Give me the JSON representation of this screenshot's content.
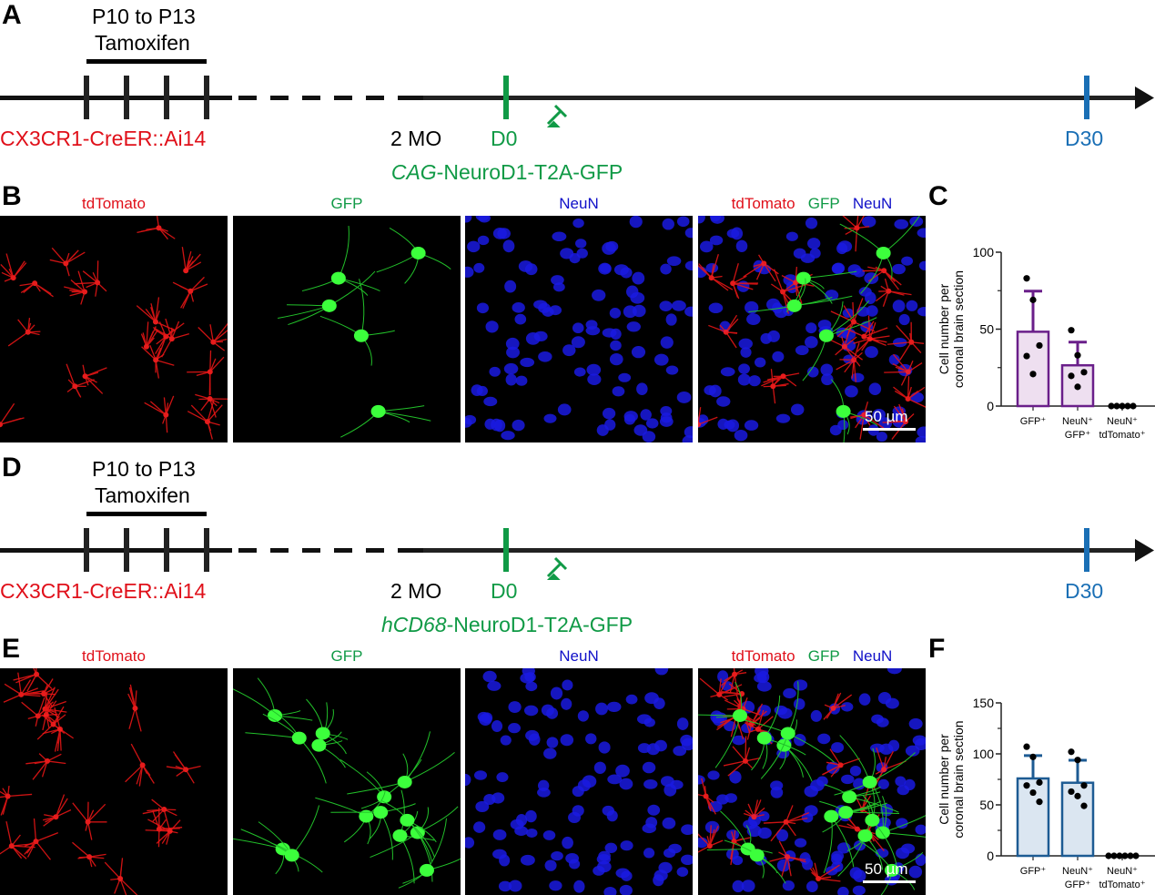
{
  "colors": {
    "red": "#e0101a",
    "green": "#109a46",
    "blue": "#1a6fb5",
    "navy": "#1010c8",
    "purple": "#6a1f8a",
    "purple_fill": "#eedff0",
    "steel": "#1d5b93",
    "steel_fill": "#dbe6f1"
  },
  "panels": [
    {
      "letter_timeline": "A",
      "letter_images": "B",
      "letter_chart": "C",
      "timeline": {
        "period": "P10 to P13",
        "drug": "Tamoxifen",
        "mouse": "CX3CR1-CreER::Ai14",
        "age": "2 MO",
        "day0": "D0",
        "day30": "D30",
        "virus_italic": "CAG",
        "virus_rest": "-NeuroD1-T2A-GFP",
        "icon": "syringe-icon"
      },
      "images": {
        "channels": [
          "tdTomato",
          "GFP",
          "NeuN"
        ],
        "merge_labels": [
          "tdTomato",
          "GFP",
          "NeuN"
        ],
        "scale_bar": "50 µm"
      }
    },
    {
      "letter_timeline": "D",
      "letter_images": "E",
      "letter_chart": "F",
      "timeline": {
        "period": "P10 to P13",
        "drug": "Tamoxifen",
        "mouse": "CX3CR1-CreER::Ai14",
        "age": "2 MO",
        "day0": "D0",
        "day30": "D30",
        "virus_italic": "hCD68",
        "virus_rest": "-NeuroD1-T2A-GFP",
        "icon": "syringe-icon"
      },
      "images": {
        "channels": [
          "tdTomato",
          "GFP",
          "NeuN"
        ],
        "merge_labels": [
          "tdTomato",
          "GFP",
          "NeuN"
        ],
        "scale_bar": "50 µm"
      }
    }
  ],
  "chart_data": [
    {
      "type": "bar",
      "panel": "C",
      "ylabel_line1": "Cell number per",
      "ylabel_line2": "coronal brain section",
      "ylim": [
        0,
        100
      ],
      "yticks": [
        0,
        50,
        100
      ],
      "minor_ticks": [
        25,
        75
      ],
      "categories": [
        [
          "GFP⁺"
        ],
        [
          "NeuN⁺",
          "GFP⁺"
        ],
        [
          "NeuN⁺",
          "tdTomato⁺"
        ]
      ],
      "values": [
        48.3,
        26.5,
        0
      ],
      "error_upper": [
        74.7,
        41.6,
        0
      ],
      "points": [
        [
          83,
          69,
          39.4,
          32.5,
          20.8
        ],
        [
          49.3,
          33,
          22,
          19.6,
          12.5
        ],
        [
          0,
          0,
          0,
          0,
          0
        ]
      ],
      "color": "#6a1f8a",
      "fill": "#eedff0"
    },
    {
      "type": "bar",
      "panel": "F",
      "ylabel_line1": "Cell number per",
      "ylabel_line2": "coronal brain section",
      "ylim": [
        0,
        150
      ],
      "yticks": [
        0,
        50,
        100,
        150
      ],
      "minor_ticks": [
        25,
        75,
        125
      ],
      "categories": [
        [
          "GFP⁺"
        ],
        [
          "NeuN⁺",
          "GFP⁺"
        ],
        [
          "NeuN⁺",
          "tdTomato⁺"
        ]
      ],
      "values": [
        75.9,
        71.7,
        0
      ],
      "error_upper": [
        98.3,
        93.8,
        0
      ],
      "points": [
        [
          107,
          97,
          72,
          69,
          62,
          53
        ],
        [
          102,
          94,
          69,
          63,
          58.6,
          49
        ],
        [
          0,
          0,
          0,
          0,
          0,
          0
        ]
      ],
      "color": "#1d5b93",
      "fill": "#dbe6f1"
    }
  ]
}
